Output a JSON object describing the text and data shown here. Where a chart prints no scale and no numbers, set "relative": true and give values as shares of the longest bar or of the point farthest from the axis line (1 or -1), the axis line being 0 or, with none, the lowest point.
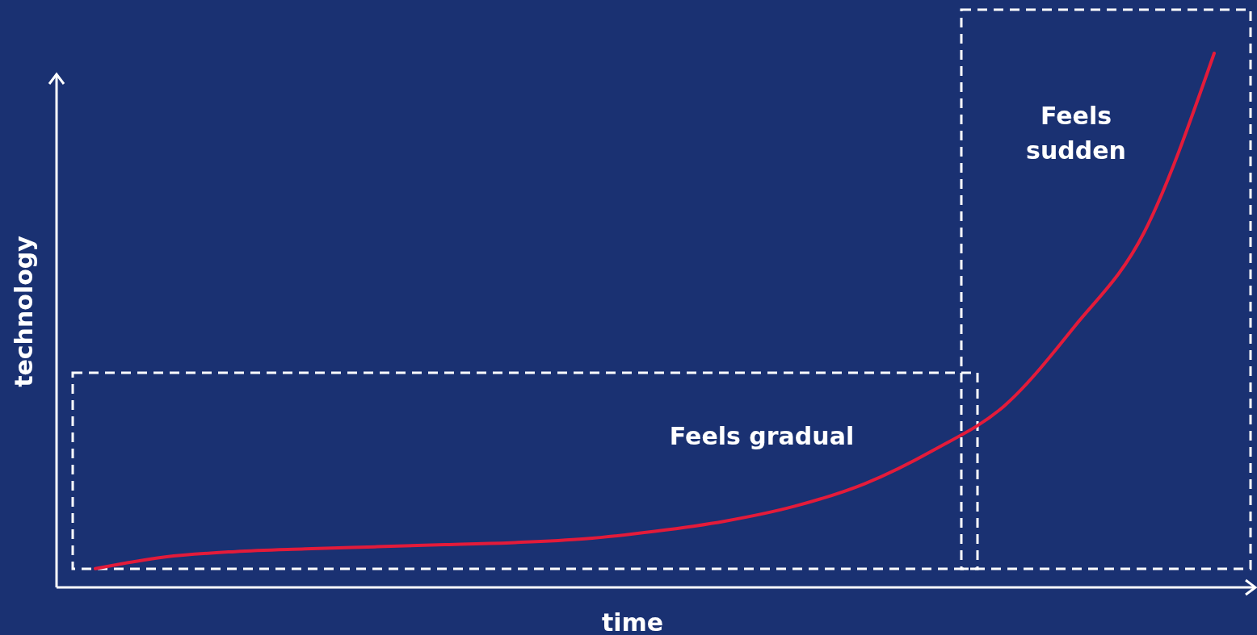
{
  "chart_data": {
    "type": "line",
    "relative": true,
    "xlabel": "time",
    "ylabel": "technology",
    "categories": [
      null,
      null,
      null,
      null,
      null,
      null,
      null,
      null,
      null,
      null,
      null,
      null,
      null,
      null,
      null,
      null,
      null
    ],
    "values": [
      0.035,
      0.057,
      0.067,
      0.072,
      0.076,
      0.08,
      0.084,
      0.091,
      0.105,
      0.124,
      0.152,
      0.194,
      0.258,
      0.34,
      0.488,
      0.665,
      1.0
    ],
    "color": "#e31b3a",
    "annotations": [
      "Feels gradual",
      "Feels sudden"
    ]
  }
}
